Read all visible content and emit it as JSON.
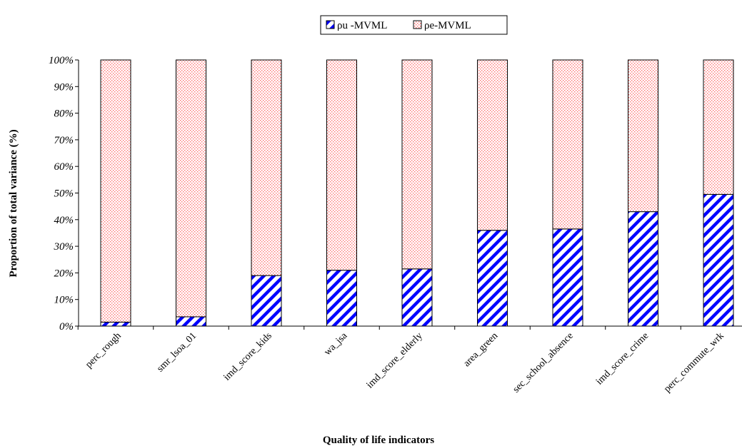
{
  "chart_data": {
    "type": "bar",
    "stacked": true,
    "percent": true,
    "categories": [
      "perc_rough",
      "smr_lsoa_01",
      "imd_score_kids",
      "wa_jsa",
      "imd_score_elderly",
      "area_green",
      "sec_school_absence",
      "imd_score_crime",
      "perc_commute_wrk"
    ],
    "series": [
      {
        "name": "ρu -MVML",
        "values": [
          1.5,
          3.5,
          19,
          21,
          21.5,
          36,
          36.5,
          43,
          49.5
        ],
        "color": "#0000ff",
        "pattern": "diagonal-stripes"
      },
      {
        "name": "ρe-MVML",
        "values": [
          98.5,
          96.5,
          81,
          79,
          78.5,
          64,
          63.5,
          57,
          50.5
        ],
        "color": "#ff9999",
        "pattern": "dots"
      }
    ],
    "ylim": [
      0,
      100
    ],
    "yticks": [
      "0%",
      "10%",
      "20%",
      "30%",
      "40%",
      "50%",
      "60%",
      "70%",
      "80%",
      "90%",
      "100%"
    ],
    "xlabel": "Quality of life indicators",
    "ylabel": "Proportion of total variance (%)",
    "legend_position": "top-center",
    "grid": false
  }
}
